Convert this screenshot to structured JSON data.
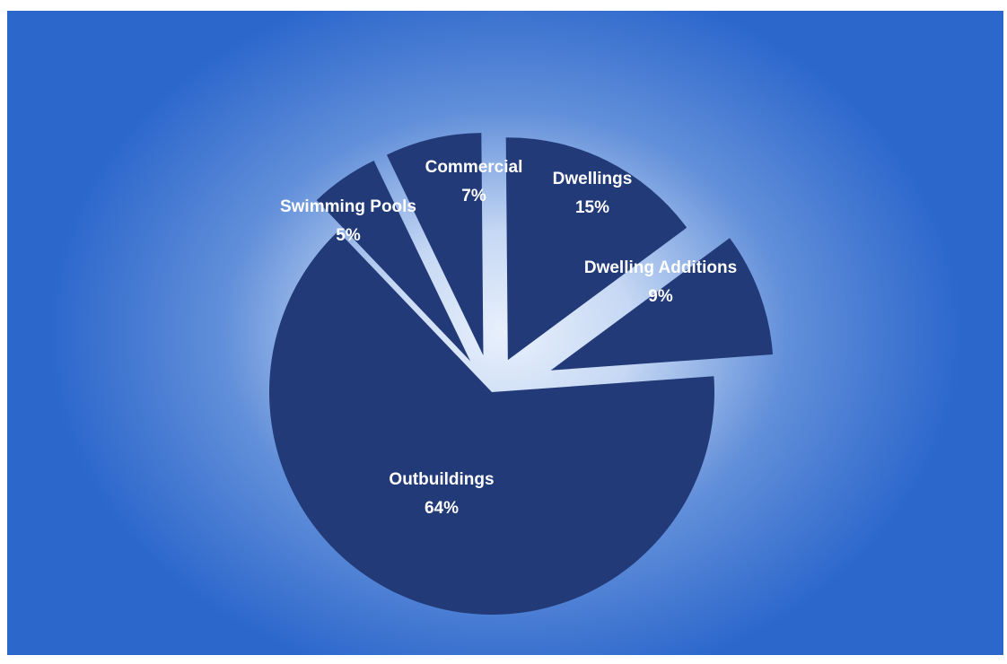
{
  "chart_data": {
    "type": "pie",
    "title": "",
    "slices": [
      {
        "label": "Dwellings",
        "value": 15,
        "display": "15%"
      },
      {
        "label": "Dwelling Additions",
        "value": 9,
        "display": "9%"
      },
      {
        "label": "Outbuildings",
        "value": 64,
        "display": "64%"
      },
      {
        "label": "Swimming Pools",
        "value": 5,
        "display": "5%"
      },
      {
        "label": "Commercial",
        "value": 7,
        "display": "7%"
      }
    ],
    "exploded": true,
    "legend": "none",
    "colors": {
      "slice": "#223a78",
      "background": "#2c67cc",
      "label": "#ffffff"
    }
  }
}
